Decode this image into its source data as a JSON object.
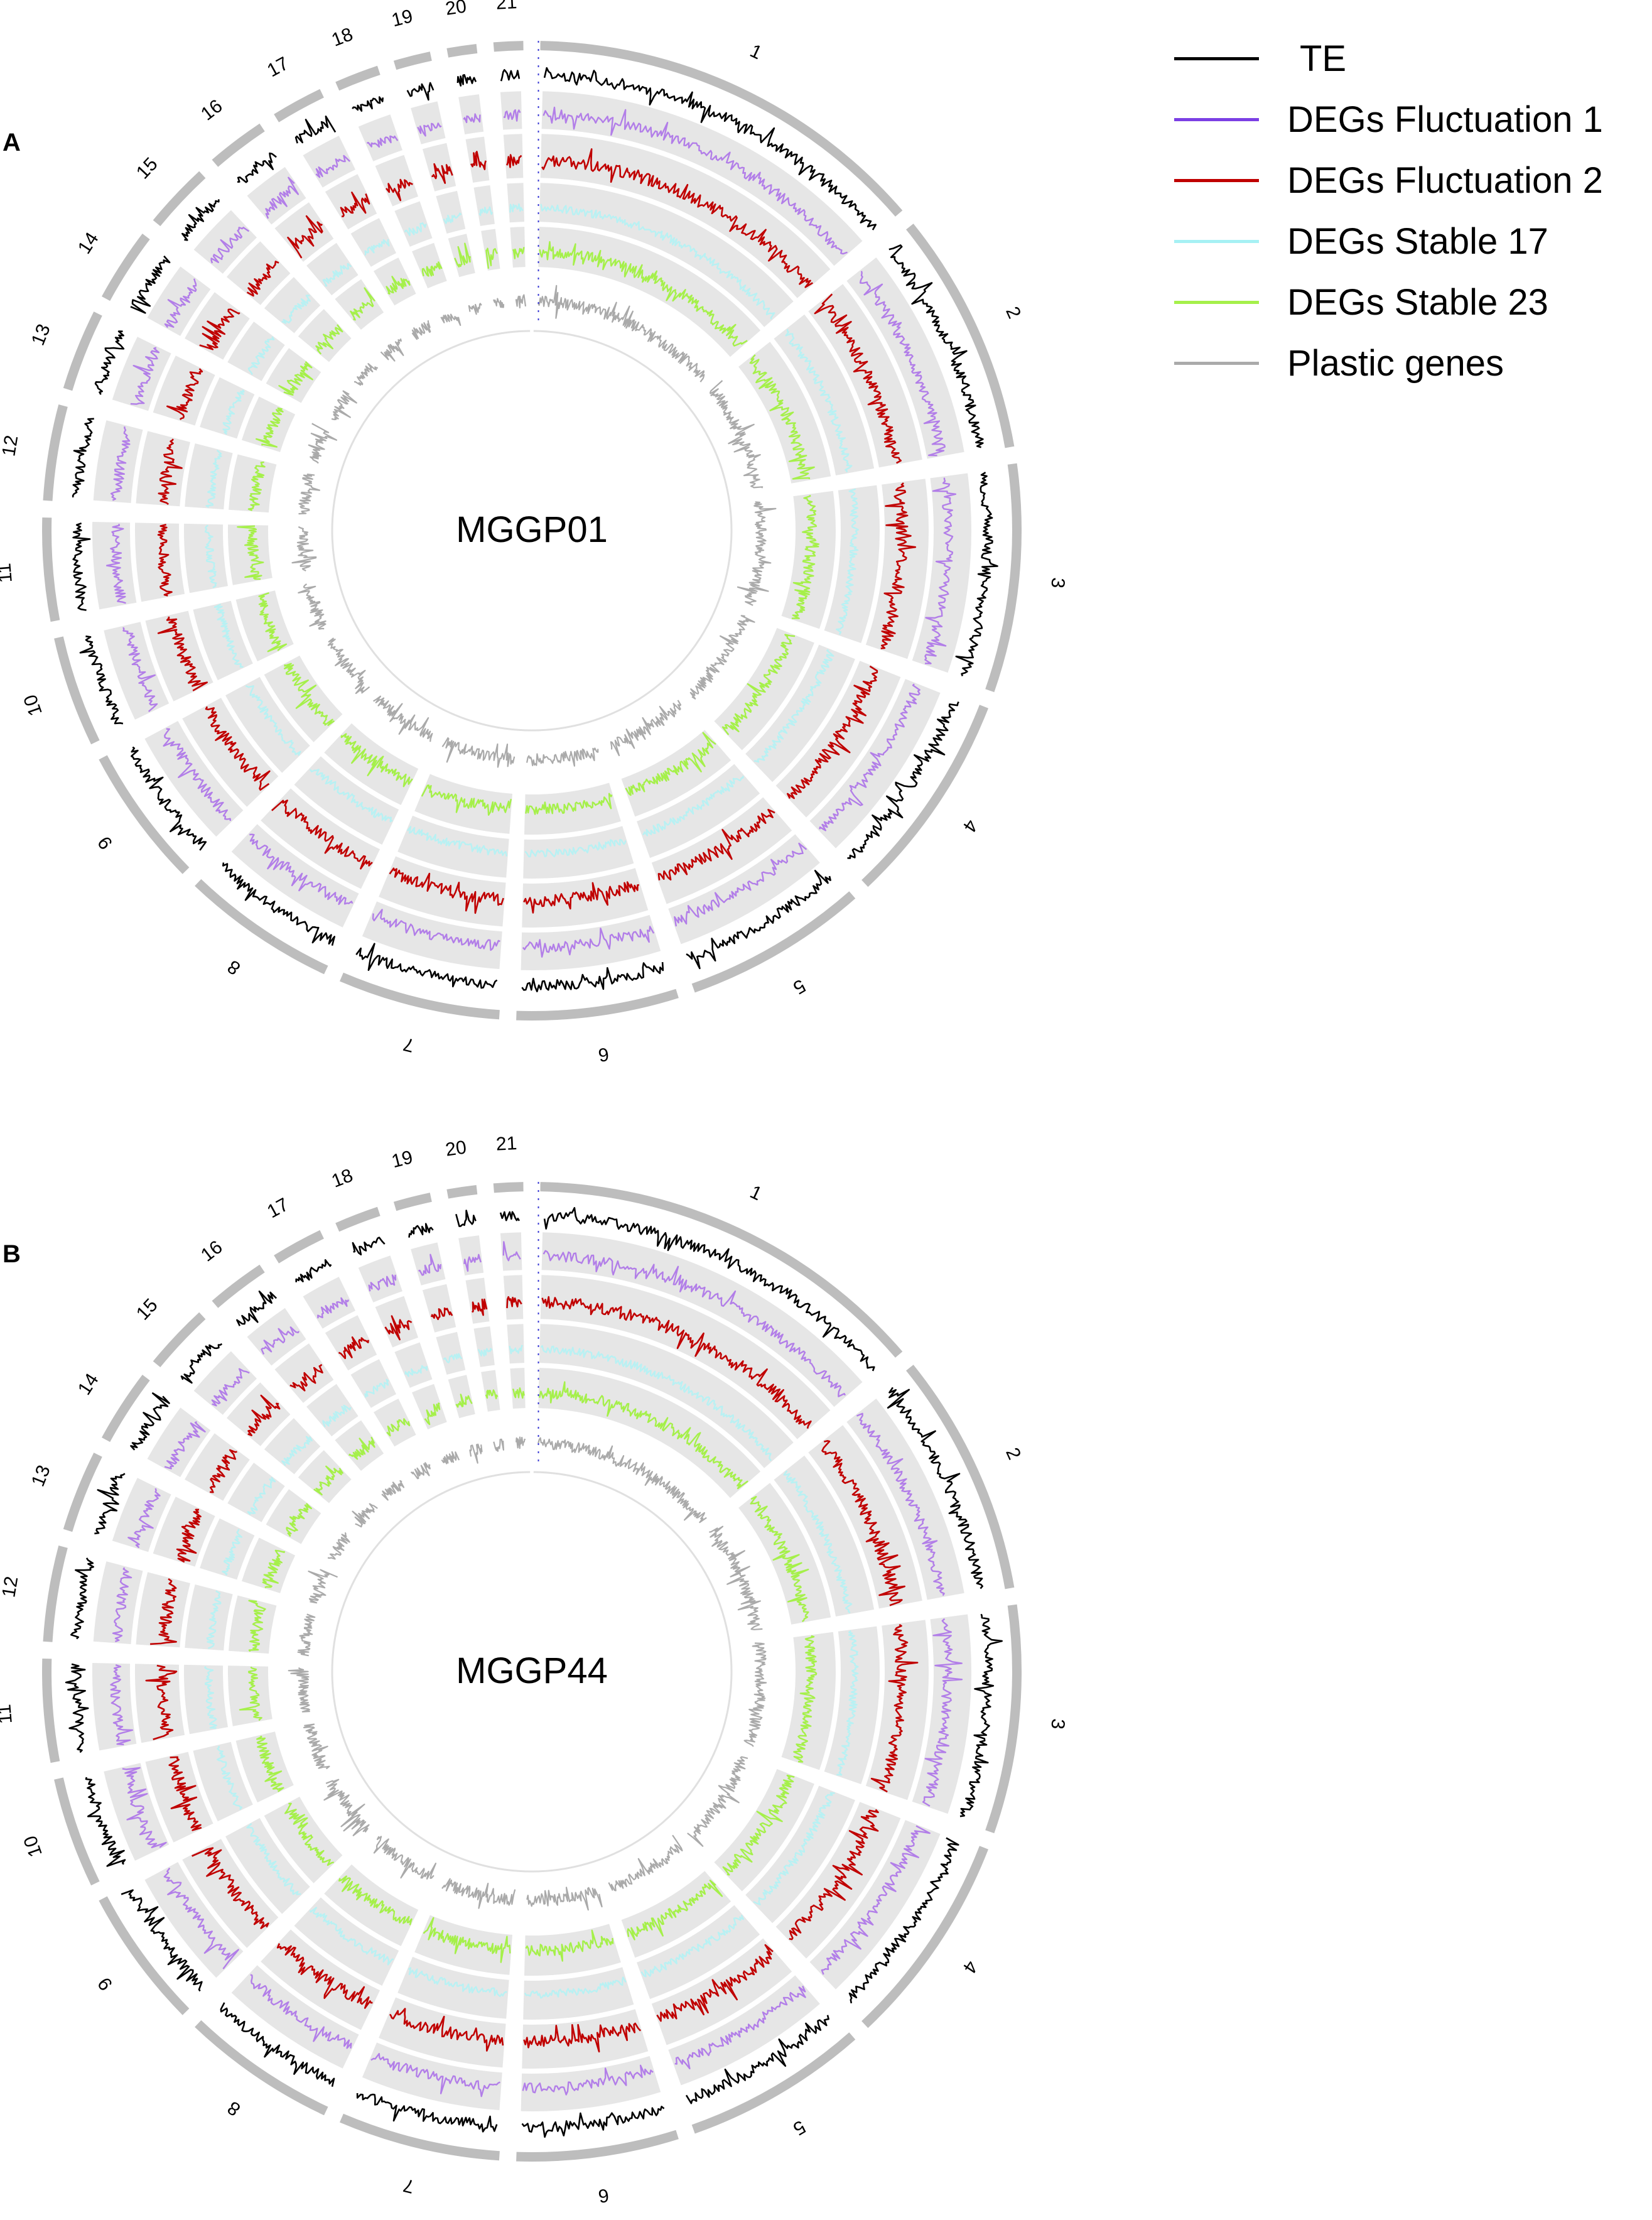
{
  "panels": [
    {
      "letter": "A",
      "title": "MGGP01",
      "seed": 11
    },
    {
      "letter": "B",
      "title": "MGGP44",
      "seed": 37
    }
  ],
  "chromosomes": [
    "1",
    "2",
    "3",
    "4",
    "5",
    "6",
    "7",
    "8",
    "9",
    "10",
    "11",
    "12",
    "13",
    "14",
    "15",
    "16",
    "17",
    "18",
    "19",
    "20",
    "21"
  ],
  "legend": [
    {
      "label": "TE",
      "color": "#000000"
    },
    {
      "label": "DEGs Fluctuation 1",
      "color": "#7b3fe4"
    },
    {
      "label": "DEGs Fluctuation 2",
      "color": "#c00000"
    },
    {
      "label": "DEGs Stable 17",
      "color": "#a6f1f4"
    },
    {
      "label": "DEGs Stable 23",
      "color": "#a5f04a"
    },
    {
      "label": "Plastic genes",
      "color": "#aaaaaa"
    }
  ],
  "colors": {
    "outer_ring": "#bdbdbd",
    "track_bg": "#e6e6e6",
    "te": "#000000",
    "fluct1": "#b27ee8",
    "fluct2": "#c00000",
    "stable17": "#b8f1f3",
    "stable23": "#a5f04a",
    "plastic": "#aaaaaa",
    "axis": "#3b3bd4"
  }
}
